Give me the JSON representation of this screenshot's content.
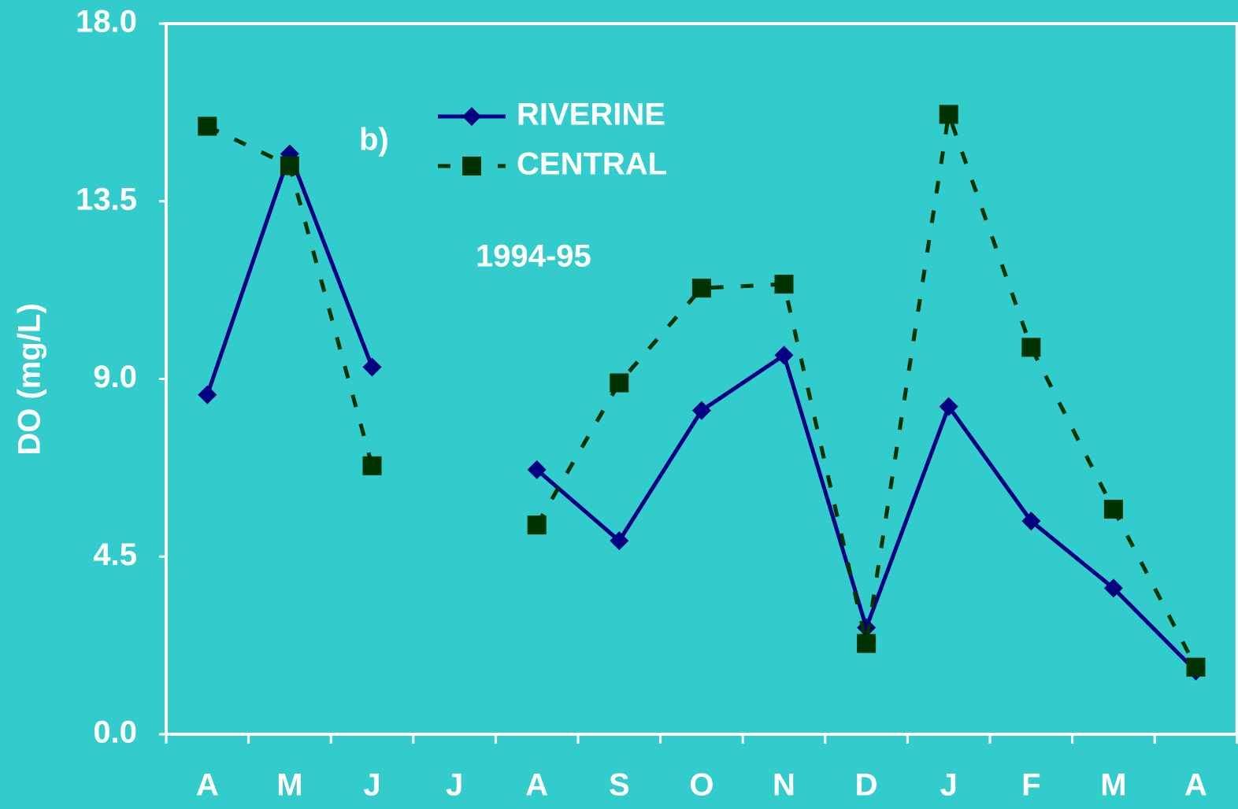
{
  "chart_data": {
    "type": "line",
    "ylabel": "DO (mg/L)",
    "annotations": [
      "b)",
      "1994-95"
    ],
    "categories": [
      "A",
      "M",
      "J",
      "J",
      "A",
      "S",
      "O",
      "N",
      "D",
      "J",
      "F",
      "M",
      "A"
    ],
    "series": [
      {
        "name": "RIVERINE",
        "color": "#000080",
        "values": [
          8.6,
          14.7,
          9.3,
          null,
          6.7,
          4.9,
          8.2,
          9.6,
          2.7,
          8.3,
          5.4,
          3.7,
          1.6
        ]
      },
      {
        "name": "CENTRAL",
        "color": "#003300",
        "values": [
          15.4,
          14.4,
          6.8,
          null,
          5.3,
          8.9,
          11.3,
          11.4,
          2.3,
          15.7,
          9.8,
          5.7,
          1.7
        ]
      }
    ],
    "ylim": [
      0,
      18
    ],
    "yticks": [
      {
        "value": 0,
        "label": "0.0"
      },
      4.5,
      {
        "value": 9,
        "label": "9.0"
      },
      13.5,
      {
        "value": 18,
        "label": "18.0"
      }
    ],
    "legend": "upper center"
  }
}
